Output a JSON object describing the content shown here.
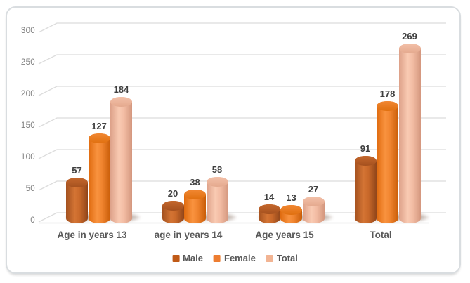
{
  "chart_data": {
    "type": "bar",
    "subtype": "3d-cylinder",
    "title": "",
    "xlabel": "",
    "ylabel": "",
    "categories": [
      "Age in years 13",
      "age in years 14",
      "Age years 15",
      "Total"
    ],
    "series": [
      {
        "name": "Male",
        "values": [
          57,
          20,
          14,
          91
        ]
      },
      {
        "name": "Female",
        "values": [
          127,
          38,
          13,
          178
        ]
      },
      {
        "name": "Total",
        "values": [
          184,
          58,
          27,
          269
        ]
      }
    ],
    "y_ticks": [
      0,
      50,
      100,
      150,
      200,
      250,
      300
    ],
    "ylim": [
      0,
      300
    ],
    "grid": true,
    "legend_position": "bottom",
    "data_labels": true
  },
  "colors": {
    "series": [
      {
        "name": "Male",
        "body_edge_left": "#a3511f",
        "body_light": "#d47434",
        "body_mid": "#c9692a",
        "body_edge_right": "#90451a",
        "cap_top": "#c4672c",
        "cap_bottom": "#a5511f",
        "legend": "#c05a17"
      },
      {
        "name": "Female",
        "body_edge_left": "#df6a0e",
        "body_light": "#f9933f",
        "body_mid": "#f0842f",
        "body_edge_right": "#c95d08",
        "cap_top": "#f18732",
        "cap_bottom": "#e0700f",
        "legend": "#ed7d31"
      },
      {
        "name": "Total",
        "body_edge_left": "#dda189",
        "body_light": "#f9cab2",
        "body_mid": "#f3bda4",
        "body_edge_right": "#d4977e",
        "cap_top": "#f3c0a8",
        "cap_bottom": "#e4a98e",
        "legend": "#f2b493"
      }
    ],
    "gridline": "#dcdcdc",
    "floor_front_line": "#c9c9c9",
    "tick_text": "#7f7f7f",
    "value_text": "#3f3f3f",
    "category_text": "#595959",
    "legend_text": "#595959",
    "frame_border": "#d9dde0",
    "background": "#ffffff"
  }
}
